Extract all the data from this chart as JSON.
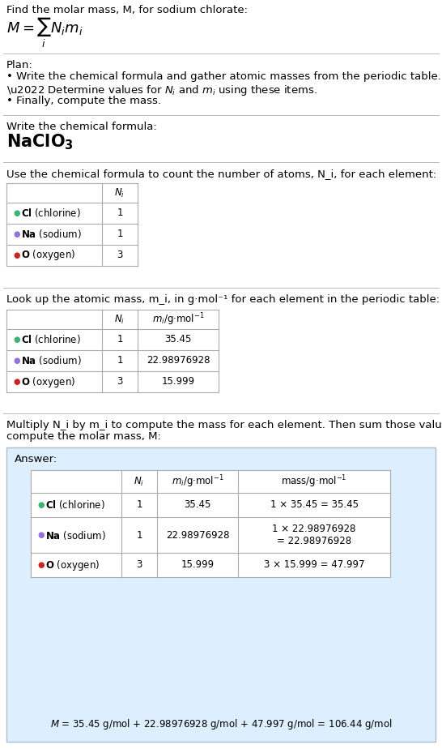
{
  "title_line": "Find the molar mass, M, for sodium chlorate:",
  "plan_header": "Plan:",
  "plan_bullets": [
    "• Write the chemical formula and gather atomic masses from the periodic table.",
    "• Determine values for N_i and m_i using these items.",
    "• Finally, compute the mass."
  ],
  "chemical_formula_label": "Write the chemical formula:",
  "count_label": "Use the chemical formula to count the number of atoms, N_i, for each element:",
  "elements": [
    "Cl (chlorine)",
    "Na (sodium)",
    "O (oxygen)"
  ],
  "element_syms": [
    "Cl",
    "Na",
    "O"
  ],
  "element_names": [
    " (chlorine)",
    " (sodium)",
    " (oxygen)"
  ],
  "colors": [
    "#3cb371",
    "#9370db",
    "#cc2222"
  ],
  "N_i": [
    "1",
    "1",
    "3"
  ],
  "m_i": [
    "35.45",
    "22.98976928",
    "15.999"
  ],
  "mass_col": [
    "1 × 35.45 = 35.45",
    "1 × 22.98976928\n= 22.98976928",
    "3 × 15.999 = 47.997"
  ],
  "lookup_label": "Look up the atomic mass, m_i, in g·mol⁻¹ for each element in the periodic table:",
  "multiply_label1": "Multiply N_i by m_i to compute the mass for each element. Then sum those values to",
  "multiply_label2": "compute the molar mass, M:",
  "answer_label": "Answer:",
  "final_eq": "M = 35.45 g/mol + 22.98976928 g/mol + 47.997 g/mol = 106.44 g/mol",
  "answer_bg": "#ddeeff",
  "answer_border": "#aabbcc",
  "bg_color": "#ffffff",
  "text_color": "#000000",
  "sep_color": "#bbbbbb"
}
